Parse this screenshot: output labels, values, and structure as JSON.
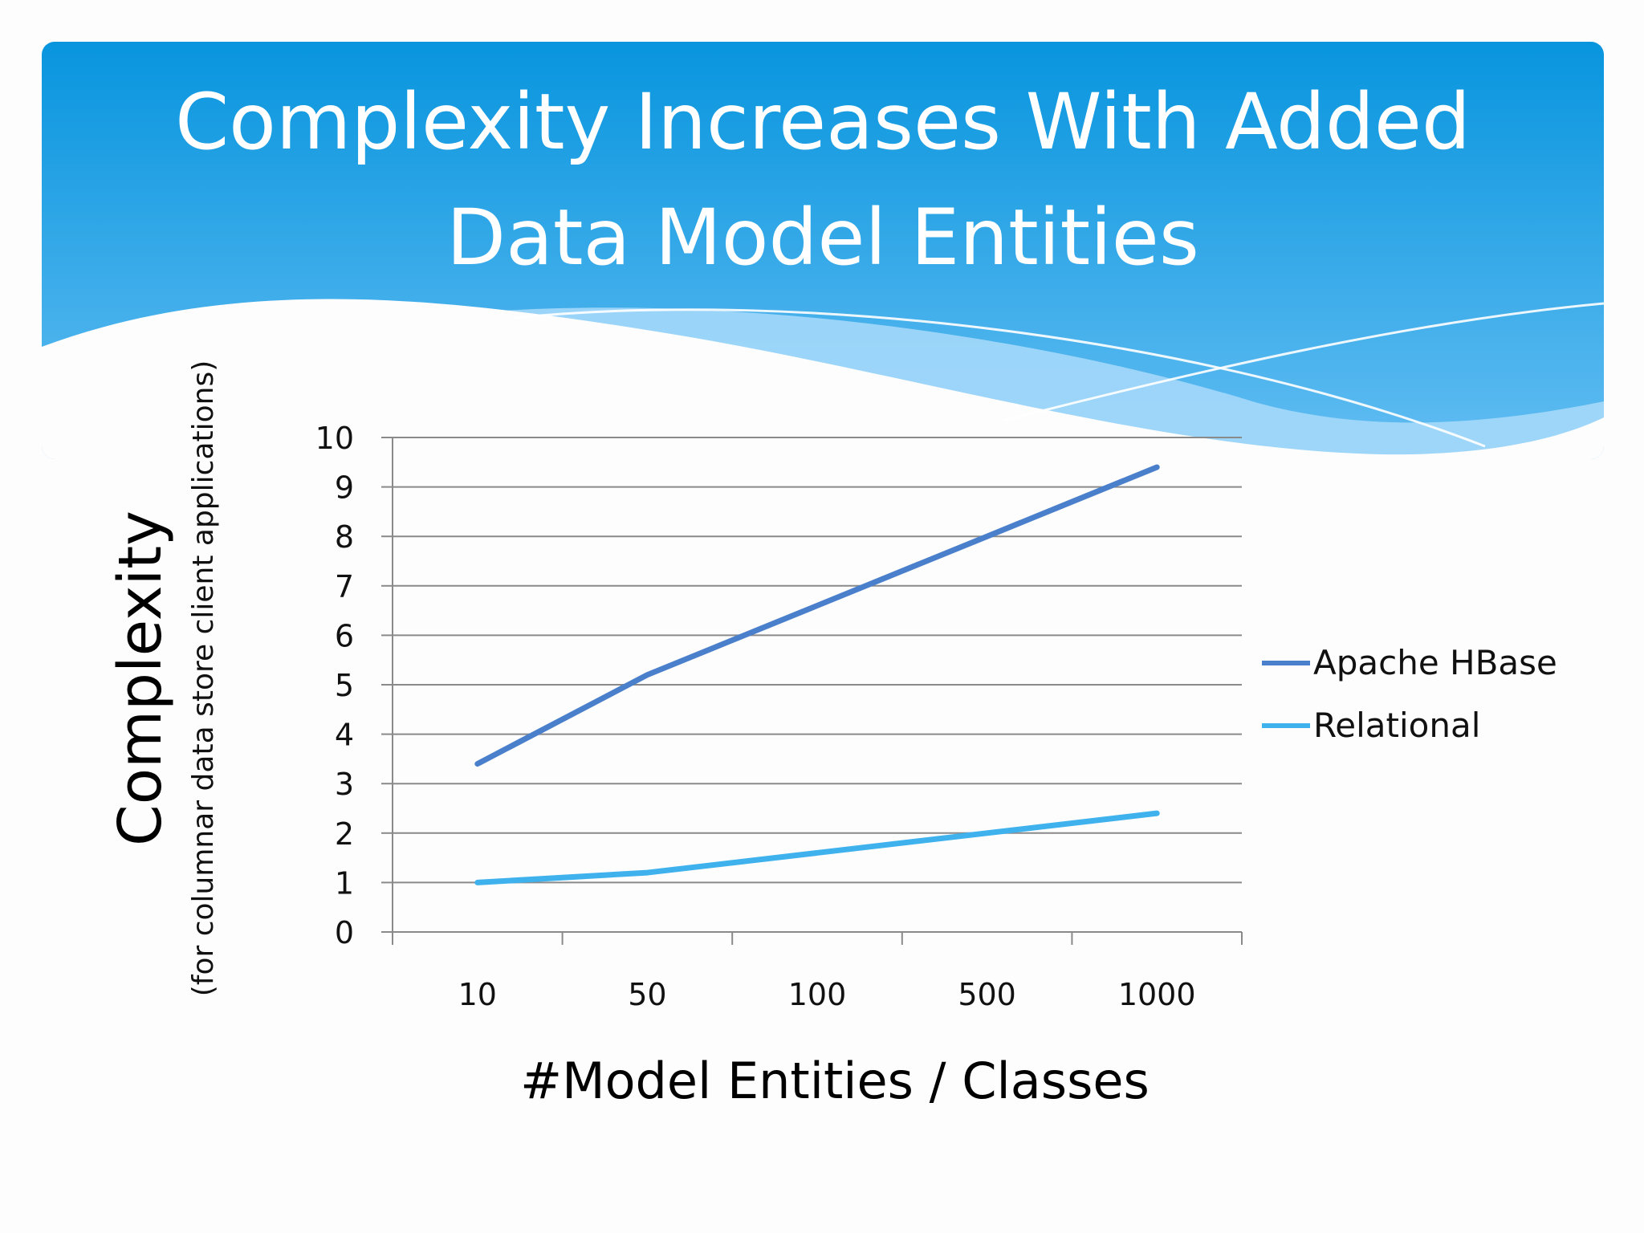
{
  "slide": {
    "title_line1": "Complexity Increases With Added",
    "title_line2": "Data Model Entities"
  },
  "colors": {
    "header_top": "#0895de",
    "header_bottom": "#5ab8f0",
    "wave_light": "#9fd6f8",
    "hbase": "#4a7fcb",
    "relational": "#3fb2ee",
    "grid": "#8a8a8a"
  },
  "chart_data": {
    "type": "line",
    "title": "",
    "categories": [
      "10",
      "50",
      "100",
      "500",
      "1000"
    ],
    "series": [
      {
        "name": "Apache HBase",
        "values": [
          3.4,
          5.2,
          6.6,
          8.0,
          9.4
        ]
      },
      {
        "name": "Relational",
        "values": [
          1.0,
          1.2,
          1.6,
          2.0,
          2.4
        ]
      }
    ],
    "xlabel": "#Model Entities / Classes",
    "ylabel": "Complexity",
    "ylabel_sub": "(for columnar data store client applications)",
    "ylim": [
      0,
      10
    ],
    "yticks": [
      "0",
      "1",
      "2",
      "3",
      "4",
      "5",
      "6",
      "7",
      "8",
      "9",
      "10"
    ],
    "grid": true,
    "legend_position": "right"
  }
}
